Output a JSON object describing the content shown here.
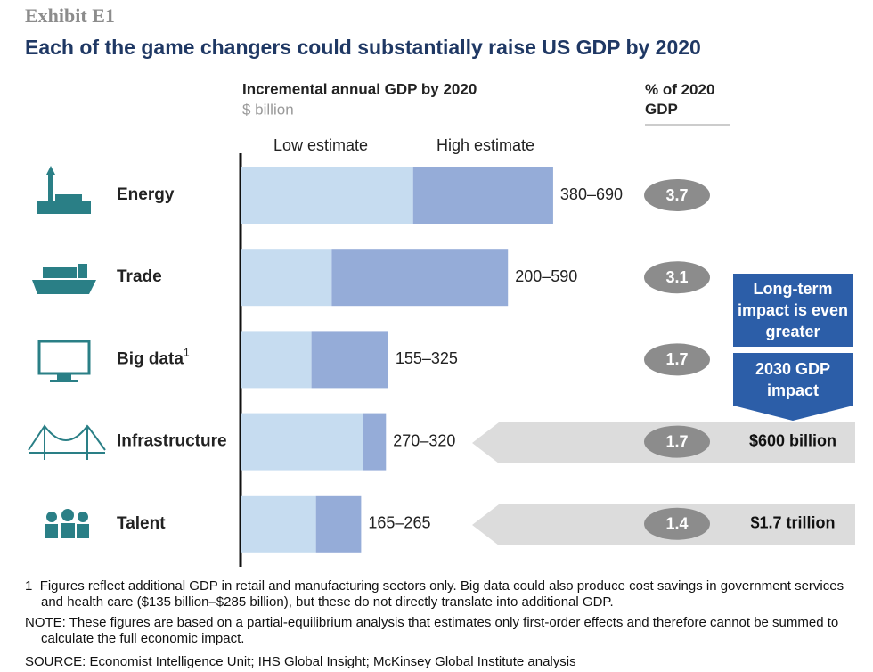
{
  "chart_data": {
    "type": "range_bar",
    "exhibit": "Exhibit E1",
    "title": "Each of the game changers could substantially raise US GDP by 2020",
    "subtitle": "Incremental annual GDP by 2020",
    "unit": "$ billion",
    "categories": [
      "Energy",
      "Trade",
      "Big data",
      "Infrastructure",
      "Talent"
    ],
    "category_marks": [
      null,
      null,
      "1",
      null,
      null
    ],
    "series": [
      {
        "name": "Low estimate",
        "color": "#c6dcf0",
        "values": [
          380,
          200,
          155,
          270,
          165
        ]
      },
      {
        "name": "High estimate",
        "color": "#95acd8",
        "values": [
          690,
          590,
          325,
          320,
          265
        ]
      }
    ],
    "value_labels": [
      "380–690",
      "200–590",
      "155–325",
      "270–320",
      "165–265"
    ],
    "xlim": [
      0,
      700
    ],
    "share": {
      "label": "% of 2020 GDP",
      "values": [
        3.7,
        3.1,
        1.7,
        1.7,
        1.4
      ]
    },
    "long_term": {
      "title": "Long-term impact is even greater",
      "subtitle": "2030 GDP impact",
      "values": [
        null,
        null,
        null,
        "$600 billion",
        "$1.7 trillion"
      ]
    },
    "notes": [
      {
        "marker": "1",
        "text": "Figures reflect  additional GDP in retail and manufacturing sectors only. Big data could also produce cost savings in government services and health care ($135 billion–$285 billion), but these  do not directly translate into  additional GDP."
      },
      {
        "marker": "NOTE:",
        "text": "These figures are based on a partial-equilibrium analysis that estimates only first-order effects and therefore cannot be summed to calculate the full economic impact."
      }
    ],
    "source": "SOURCE: Economist Intelligence Unit; IHS Global Insight; McKinsey Global Institute analysis"
  }
}
